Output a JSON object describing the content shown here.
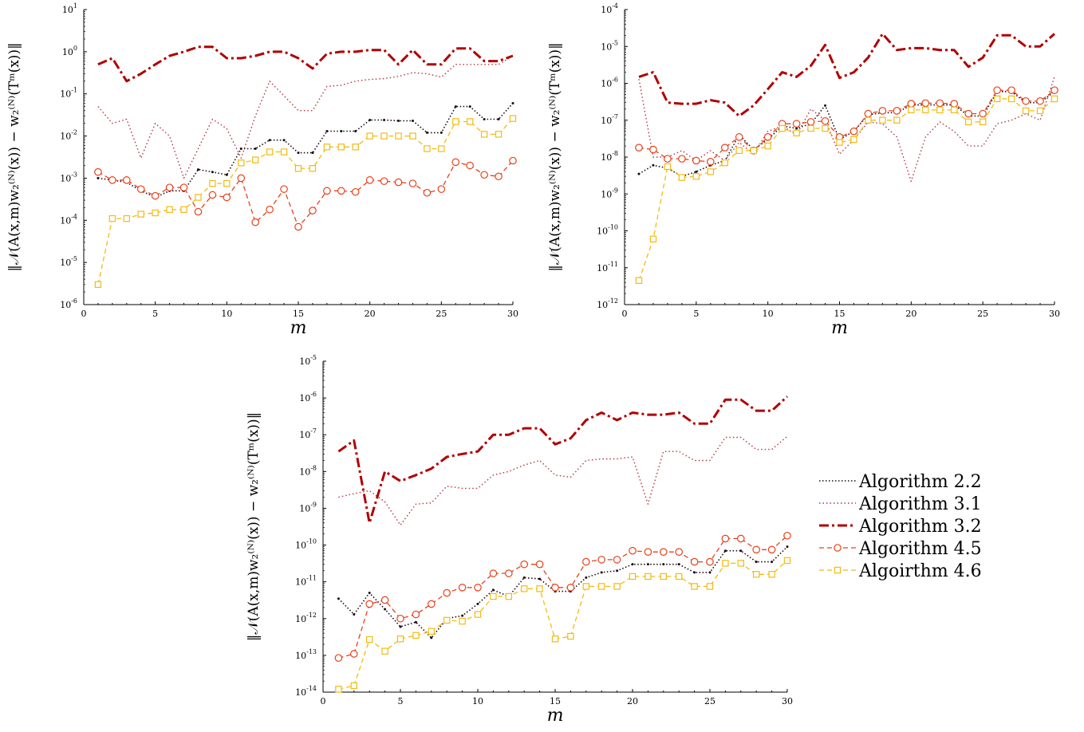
{
  "figure": {
    "legend_position": "right of bottom panel",
    "colors": {
      "alg22": "#1a0a12",
      "alg31": "#b2343c",
      "alg32": "#b00000",
      "alg45": "#e8401a",
      "alg46": "#f2bb11"
    }
  },
  "chart_data": [
    {
      "type": "line",
      "panel": "top-left",
      "xlabel": "m",
      "ylabel": "‖𝒩(A(x,m)w₂⁽ᴺ⁾(x)) − w₂⁽ᴺ⁾(Tᵐ(x))‖",
      "xlim": [
        0,
        30
      ],
      "ylim_exp": [
        -6,
        1
      ],
      "yscale": "log",
      "xticks": [
        "0",
        "5",
        "10",
        "15",
        "20",
        "25",
        "30"
      ],
      "yticks_exp": [
        "-6",
        "-5",
        "-4",
        "-3",
        "-2",
        "-1",
        "0",
        "1"
      ],
      "x": [
        1,
        2,
        3,
        4,
        5,
        6,
        7,
        8,
        9,
        10,
        11,
        12,
        13,
        14,
        15,
        16,
        17,
        18,
        19,
        20,
        21,
        22,
        23,
        24,
        25,
        26,
        27,
        28,
        29,
        30
      ],
      "series": [
        {
          "name": "Algorithm 2.2",
          "values": [
            0.001,
            0.0009,
            0.0008,
            0.0005,
            0.00035,
            0.0005,
            0.0005,
            0.0016,
            0.0014,
            0.0012,
            0.005,
            0.005,
            0.008,
            0.008,
            0.004,
            0.004,
            0.013,
            0.013,
            0.013,
            0.024,
            0.024,
            0.023,
            0.023,
            0.012,
            0.012,
            0.05,
            0.05,
            0.025,
            0.025,
            0.06
          ]
        },
        {
          "name": "Algorithm 3.1",
          "values": [
            0.05,
            0.02,
            0.025,
            0.003,
            0.02,
            0.01,
            0.001,
            0.005,
            0.025,
            0.015,
            0.003,
            0.03,
            0.2,
            0.09,
            0.04,
            0.04,
            0.15,
            0.16,
            0.2,
            0.22,
            0.23,
            0.26,
            0.32,
            0.3,
            0.25,
            0.5,
            0.5,
            0.5,
            0.5,
            0.8
          ]
        },
        {
          "name": "Algorithm 3.2",
          "values": [
            0.5,
            0.7,
            0.2,
            0.3,
            0.5,
            0.8,
            1,
            1.3,
            1.3,
            0.7,
            0.7,
            0.8,
            1,
            1,
            0.7,
            0.4,
            0.9,
            1,
            1,
            1.1,
            1.1,
            0.5,
            1.1,
            0.5,
            0.5,
            1.2,
            1.2,
            0.6,
            0.6,
            0.8
          ]
        },
        {
          "name": "Algorithm 4.5",
          "values": [
            0.0014,
            0.0009,
            0.0009,
            0.00055,
            0.00038,
            0.0006,
            0.0006,
            0.00016,
            0.0004,
            0.00035,
            0.001,
            9e-05,
            0.00018,
            0.00055,
            7e-05,
            0.00017,
            0.0005,
            0.0005,
            0.00047,
            0.0009,
            0.00085,
            0.0008,
            0.00075,
            0.00045,
            0.00055,
            0.0024,
            0.002,
            0.0012,
            0.0011,
            0.0026
          ]
        },
        {
          "name": "Algoirthm 4.6",
          "values": [
            3e-06,
            0.00011,
            0.00011,
            0.00014,
            0.00015,
            0.00018,
            0.00018,
            0.00035,
            0.00075,
            0.00075,
            0.0023,
            0.0027,
            0.0042,
            0.0042,
            0.0017,
            0.0017,
            0.0055,
            0.0055,
            0.0055,
            0.01,
            0.01,
            0.01,
            0.01,
            0.005,
            0.005,
            0.022,
            0.022,
            0.011,
            0.011,
            0.026
          ]
        }
      ]
    },
    {
      "type": "line",
      "panel": "top-right",
      "xlabel": "m",
      "ylabel": "‖𝒩(A(x,m)w₂⁽ᴺ⁾(x)) − w₂⁽ᴺ⁾(Tᵐ(x))‖",
      "xlim": [
        0,
        30
      ],
      "ylim_exp": [
        -12,
        -4
      ],
      "yscale": "log",
      "xticks": [
        "0",
        "5",
        "10",
        "15",
        "20",
        "25",
        "30"
      ],
      "yticks_exp": [
        "-12",
        "-11",
        "-10",
        "-9",
        "-8",
        "-7",
        "-6",
        "-5",
        "-4"
      ],
      "x": [
        1,
        2,
        3,
        4,
        5,
        6,
        7,
        8,
        9,
        10,
        11,
        12,
        13,
        14,
        15,
        16,
        17,
        18,
        19,
        20,
        21,
        22,
        23,
        24,
        25,
        26,
        27,
        28,
        29,
        30
      ],
      "series": [
        {
          "name": "Algorithm 2.2",
          "values": [
            3.5e-09,
            6e-09,
            5e-09,
            3e-09,
            4e-09,
            6e-09,
            8e-09,
            4e-08,
            1.6e-08,
            3e-08,
            7e-08,
            6e-08,
            8e-08,
            2.5e-07,
            3e-08,
            5e-08,
            1.4e-07,
            1.6e-07,
            1.6e-07,
            2.6e-07,
            2.6e-07,
            2.6e-07,
            2.6e-07,
            1.3e-07,
            1.3e-07,
            6e-07,
            6e-07,
            3e-07,
            3e-07,
            6e-07
          ]
        },
        {
          "name": "Algorithm 3.1",
          "values": [
            1.3e-06,
            1e-08,
            1e-08,
            1.5e-08,
            8e-09,
            1.5e-08,
            8e-09,
            2.5e-08,
            1.2e-08,
            5e-08,
            7e-08,
            4e-08,
            2e-07,
            1e-07,
            1.2e-08,
            3e-08,
            9e-08,
            8e-08,
            3.5e-08,
            2.2e-09,
            3.5e-08,
            9e-08,
            5e-08,
            2e-08,
            2e-08,
            8e-08,
            1e-07,
            1.5e-07,
            1e-07,
            1.5e-06
          ]
        },
        {
          "name": "Algorithm 3.2",
          "values": [
            1.5e-06,
            2e-06,
            3e-07,
            2.8e-07,
            2.8e-07,
            3.5e-07,
            3e-07,
            1.3e-07,
            2.5e-07,
            7e-07,
            2e-06,
            1.5e-06,
            3e-06,
            1.1e-05,
            1.4e-06,
            2e-06,
            5e-06,
            2.2e-05,
            8e-06,
            9e-06,
            9e-06,
            8e-06,
            8e-06,
            2.8e-06,
            5e-06,
            2e-05,
            2e-05,
            1e-05,
            1e-05,
            2.2e-05
          ]
        },
        {
          "name": "Algorithm 4.5",
          "values": [
            1.8e-08,
            1.6e-08,
            9e-09,
            9e-09,
            8e-09,
            7.5e-09,
            1.8e-08,
            3.5e-08,
            1.5e-08,
            3.5e-08,
            8e-08,
            8e-08,
            9e-08,
            9.5e-08,
            3.5e-08,
            5e-08,
            1.5e-07,
            1.8e-07,
            1.8e-07,
            2.8e-07,
            2.9e-07,
            2.9e-07,
            2.8e-07,
            1.5e-07,
            1.5e-07,
            6.5e-07,
            6.5e-07,
            3.3e-07,
            3.3e-07,
            6.5e-07
          ]
        },
        {
          "name": "Algoirthm 4.6",
          "values": [
            4.5e-12,
            6e-11,
            5.5e-09,
            2.8e-09,
            3e-09,
            4e-09,
            7e-09,
            1.5e-08,
            1.5e-08,
            2e-08,
            6e-08,
            4.5e-08,
            6e-08,
            6e-08,
            2.5e-08,
            3e-08,
            1e-07,
            1e-07,
            1e-07,
            1.9e-07,
            1.9e-07,
            1.9e-07,
            1.9e-07,
            9e-08,
            9e-08,
            3.8e-07,
            3.8e-07,
            1.8e-07,
            1.8e-07,
            3.8e-07
          ]
        }
      ]
    },
    {
      "type": "line",
      "panel": "bottom",
      "xlabel": "m",
      "ylabel": "‖𝒩(A(x,m)w₂⁽ᴺ⁾(x)) − w₂⁽ᴺ⁾(Tᵐ(x))‖",
      "xlim": [
        0,
        30
      ],
      "ylim_exp": [
        -14,
        -5
      ],
      "yscale": "log",
      "xticks": [
        "0",
        "5",
        "10",
        "15",
        "20",
        "25",
        "30"
      ],
      "yticks_exp": [
        "-14",
        "-13",
        "-12",
        "-11",
        "-10",
        "-9",
        "-8",
        "-7",
        "-6",
        "-5"
      ],
      "x": [
        1,
        2,
        3,
        4,
        5,
        6,
        7,
        8,
        9,
        10,
        11,
        12,
        13,
        14,
        15,
        16,
        17,
        18,
        19,
        20,
        21,
        22,
        23,
        24,
        25,
        26,
        27,
        28,
        29,
        30
      ],
      "series": [
        {
          "name": "Algorithm 2.2",
          "values": [
            3.5e-12,
            1.3e-12,
            5e-12,
            1.8e-12,
            6e-13,
            8e-13,
            3e-13,
            1e-12,
            1.2e-12,
            2.5e-12,
            6e-12,
            4e-12,
            1.3e-11,
            1.2e-11,
            5.5e-12,
            5.5e-12,
            1.3e-11,
            1.8e-11,
            2e-11,
            3e-11,
            3e-11,
            3e-11,
            3e-11,
            1.8e-11,
            1.8e-11,
            7e-11,
            7e-11,
            3.5e-11,
            3.5e-11,
            9e-11
          ]
        },
        {
          "name": "Algorithm 3.1",
          "values": [
            2e-09,
            2.5e-09,
            3e-09,
            1.5e-09,
            3.5e-10,
            1.3e-09,
            1.4e-09,
            4e-09,
            3.5e-09,
            3.5e-09,
            8e-09,
            1e-08,
            1.5e-08,
            2e-08,
            8e-09,
            7e-09,
            2e-08,
            2.2e-08,
            2.2e-08,
            2.5e-08,
            1.3e-09,
            3.5e-08,
            3.5e-08,
            2e-08,
            2e-08,
            8.5e-08,
            8.5e-08,
            4e-08,
            4e-08,
            9e-08
          ]
        },
        {
          "name": "Algorithm 3.2",
          "values": [
            3.5e-08,
            7e-08,
            4e-10,
            1e-08,
            5.5e-09,
            8e-09,
            1.2e-08,
            2.5e-08,
            3e-08,
            3.5e-08,
            1e-07,
            1e-07,
            1.5e-07,
            1.5e-07,
            5.5e-08,
            8e-08,
            2.5e-07,
            4e-07,
            2.5e-07,
            4e-07,
            3.5e-07,
            3.5e-07,
            4e-07,
            2e-07,
            2e-07,
            9e-07,
            9e-07,
            4.5e-07,
            4.5e-07,
            1.1e-06
          ]
        },
        {
          "name": "Algorithm 4.5",
          "values": [
            8.5e-14,
            1.1e-13,
            2.5e-12,
            3.2e-12,
            1e-12,
            1.3e-12,
            2.5e-12,
            5e-12,
            7e-12,
            7e-12,
            1.7e-11,
            1.7e-11,
            3e-11,
            3e-11,
            7e-12,
            7e-12,
            3.5e-11,
            4e-11,
            4e-11,
            7e-11,
            6.5e-11,
            6.5e-11,
            6.5e-11,
            3.5e-11,
            3.5e-11,
            1.5e-10,
            1.5e-10,
            7.5e-11,
            7.5e-11,
            1.8e-10
          ]
        },
        {
          "name": "Algoirthm 4.6",
          "values": [
            1.2e-14,
            1.5e-14,
            2.7e-13,
            1.3e-13,
            2.8e-13,
            3.5e-13,
            4.5e-13,
            9e-13,
            8.5e-13,
            1.3e-12,
            4e-12,
            4e-12,
            6.5e-12,
            6.5e-12,
            2.8e-13,
            3.3e-13,
            7.5e-12,
            7.5e-12,
            7.5e-12,
            1.4e-11,
            1.4e-11,
            1.4e-11,
            1.4e-11,
            7.5e-12,
            7.5e-12,
            3.2e-11,
            3.2e-11,
            1.6e-11,
            1.6e-11,
            3.8e-11
          ]
        }
      ]
    }
  ]
}
